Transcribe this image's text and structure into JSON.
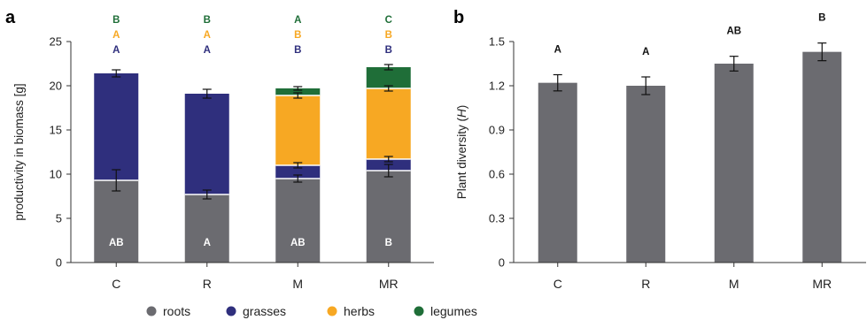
{
  "panels": {
    "a": "a",
    "b": "b"
  },
  "colors": {
    "roots": "#6b6b70",
    "grasses": "#2f2f7d",
    "herbs": "#f7a823",
    "legumes": "#1f6e38",
    "sig_roots_text": "#ffffff",
    "sig_grasses": "#2f2f7d",
    "sig_herbs": "#f7a823",
    "sig_legumes": "#1f6e38",
    "bar_b": "#6b6b70"
  },
  "legend": [
    {
      "key": "roots",
      "label": "roots"
    },
    {
      "key": "grasses",
      "label": "grasses"
    },
    {
      "key": "herbs",
      "label": "herbs"
    },
    {
      "key": "legumes",
      "label": "legumes"
    }
  ],
  "chart_data": [
    {
      "type": "bar",
      "stacked": true,
      "ylabel": "productivity in biomass [g]",
      "xlabel": "",
      "ylim": [
        0,
        25
      ],
      "yticks": [
        "0",
        "5",
        "10",
        "15",
        "20",
        "25"
      ],
      "categories": [
        "C",
        "R",
        "M",
        "MR"
      ],
      "series": [
        {
          "name": "roots",
          "key": "roots",
          "values": [
            9.3,
            7.7,
            9.5,
            10.4
          ],
          "errors": [
            1.2,
            0.5,
            0.4,
            0.7
          ]
        },
        {
          "name": "grasses",
          "key": "grasses",
          "values": [
            12.1,
            11.4,
            1.5,
            1.3
          ],
          "errors": [
            0.4,
            0.5,
            0.3,
            0.3
          ]
        },
        {
          "name": "herbs",
          "key": "herbs",
          "values": [
            0,
            0,
            7.9,
            8.0
          ],
          "errors": [
            0,
            0,
            0.3,
            0.3
          ]
        },
        {
          "name": "legumes",
          "key": "legumes",
          "values": [
            0,
            0,
            0.8,
            2.4
          ],
          "errors": [
            0,
            0,
            0.2,
            0.3
          ]
        }
      ],
      "significance": {
        "roots": [
          "AB",
          "A",
          "AB",
          "B"
        ],
        "grasses": [
          "A",
          "A",
          "B",
          "B"
        ],
        "herbs": [
          "A",
          "A",
          "B",
          "B"
        ],
        "legumes": [
          "B",
          "B",
          "A",
          "C"
        ]
      }
    },
    {
      "type": "bar",
      "ylabel_prefix": "Plant diversity (",
      "ylabel_symbol": "H",
      "ylabel_suffix": ")",
      "xlabel": "",
      "ylim": [
        0,
        1.5
      ],
      "yticks": [
        "0",
        "0.3",
        "0.6",
        "0.9",
        "1.2",
        "1.5"
      ],
      "categories": [
        "C",
        "R",
        "M",
        "MR"
      ],
      "values": [
        1.22,
        1.2,
        1.35,
        1.43
      ],
      "errors": [
        0.055,
        0.06,
        0.05,
        0.06
      ],
      "significance": [
        "A",
        "A",
        "AB",
        "B"
      ]
    }
  ]
}
